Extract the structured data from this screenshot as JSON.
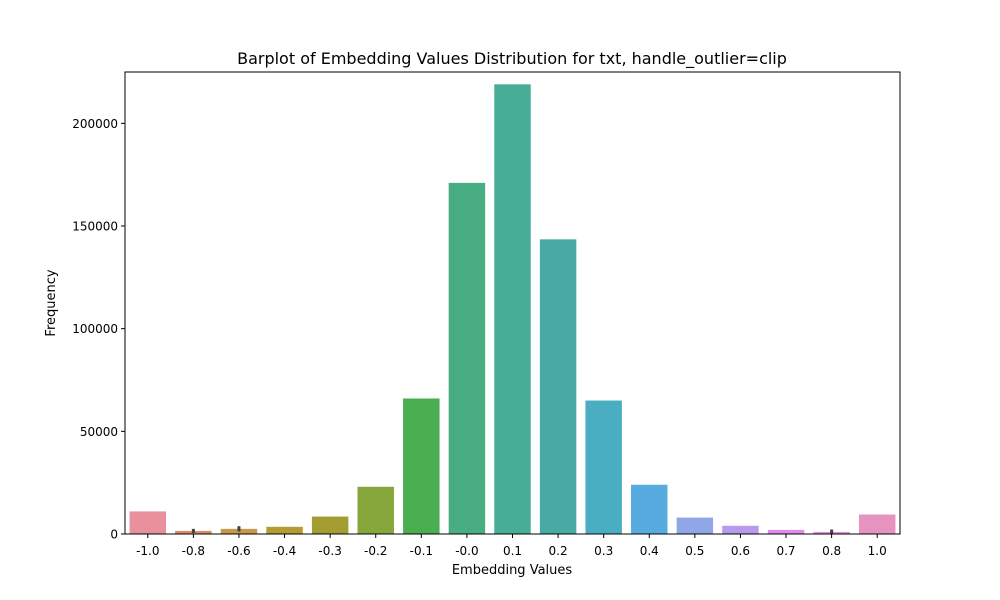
{
  "chart_data": {
    "type": "bar",
    "title": "Barplot of Embedding Values Distribution for txt, handle_outlier=clip",
    "xlabel": "Embedding Values",
    "ylabel": "Frequency",
    "ylim": [
      0,
      225000
    ],
    "yticks": [
      0,
      50000,
      100000,
      150000,
      200000
    ],
    "yticklabels": [
      "0",
      "50000",
      "100000",
      "150000",
      "200000"
    ],
    "grid": false,
    "legend": "none",
    "categories": [
      "-1.0",
      "-0.8",
      "-0.6",
      "-0.4",
      "-0.3",
      "-0.2",
      "-0.1",
      "-0.0",
      "0.1",
      "0.2",
      "0.3",
      "0.4",
      "0.5",
      "0.6",
      "0.7",
      "0.8",
      "1.0"
    ],
    "values": [
      11000,
      1500,
      2500,
      3500,
      8500,
      23000,
      66000,
      171000,
      219000,
      143500,
      65000,
      24000,
      8000,
      4000,
      2000,
      1000,
      9500
    ],
    "error_bars": [
      null,
      1000,
      1300,
      null,
      null,
      null,
      null,
      null,
      null,
      null,
      null,
      null,
      null,
      null,
      null,
      1200,
      null
    ],
    "colors": [
      "#e8919d",
      "#dc8c6b",
      "#c79a49",
      "#b59b32",
      "#a49d32",
      "#87a73c",
      "#4aae50",
      "#48ad82",
      "#47ad96",
      "#48aaa3",
      "#4aaec3",
      "#57acdf",
      "#8fa6e8",
      "#b59aed",
      "#dd8df0",
      "#e88ed6",
      "#e793c0"
    ]
  }
}
